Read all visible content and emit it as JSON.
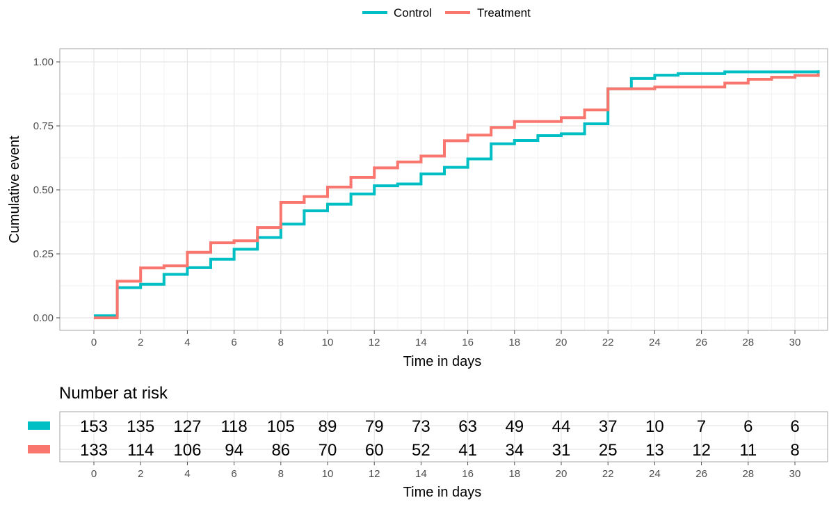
{
  "chart_data": {
    "type": "line",
    "step": true,
    "title": "",
    "xlabel": "Time in days",
    "ylabel": "Cumulative event",
    "xlim": [
      0,
      31
    ],
    "ylim": [
      0,
      1
    ],
    "x_ticks": [
      0,
      2,
      4,
      6,
      8,
      10,
      12,
      14,
      16,
      18,
      20,
      22,
      24,
      26,
      28,
      30
    ],
    "x_ticks_minor": [
      1,
      3,
      5,
      7,
      9,
      11,
      13,
      15,
      17,
      19,
      21,
      23,
      25,
      27,
      29,
      31
    ],
    "y_ticks": [
      "0.00",
      "0.25",
      "0.50",
      "0.75",
      "1.00"
    ],
    "y_ticks_minor": [
      0.125,
      0.375,
      0.625,
      0.875
    ],
    "grid": true,
    "legend_position": "top-center",
    "series": [
      {
        "name": "Control",
        "color": "#00BFC4",
        "x": [
          0,
          1,
          2,
          3,
          4,
          5,
          6,
          7,
          8,
          9,
          10,
          11,
          12,
          13,
          14,
          15,
          16,
          17,
          18,
          19,
          20,
          21,
          22,
          23,
          24,
          25,
          27,
          31
        ],
        "y": [
          0.008,
          0.118,
          0.131,
          0.17,
          0.196,
          0.229,
          0.268,
          0.314,
          0.366,
          0.418,
          0.444,
          0.484,
          0.516,
          0.523,
          0.562,
          0.588,
          0.621,
          0.68,
          0.693,
          0.712,
          0.719,
          0.758,
          0.895,
          0.935,
          0.948,
          0.954,
          0.961,
          0.967
        ]
      },
      {
        "name": "Treatment",
        "color": "#F8766D",
        "x": [
          0,
          1,
          2,
          3,
          4,
          5,
          6,
          7,
          8,
          9,
          10,
          11,
          12,
          13,
          14,
          15,
          16,
          17,
          18,
          20,
          21,
          22,
          24,
          27,
          28,
          29,
          30,
          31
        ],
        "y": [
          0.0,
          0.143,
          0.195,
          0.203,
          0.256,
          0.293,
          0.301,
          0.353,
          0.451,
          0.474,
          0.511,
          0.549,
          0.586,
          0.609,
          0.632,
          0.692,
          0.714,
          0.744,
          0.767,
          0.782,
          0.812,
          0.895,
          0.902,
          0.917,
          0.932,
          0.94,
          0.947,
          0.955
        ]
      }
    ]
  },
  "risk_table": {
    "title": "Number at risk",
    "xlabel": "Time in days",
    "times": [
      0,
      2,
      4,
      6,
      8,
      10,
      12,
      14,
      16,
      18,
      20,
      22,
      24,
      26,
      28,
      30
    ],
    "time_labels": [
      "0",
      "2",
      "4",
      "6",
      "8",
      "10",
      "12",
      "14",
      "16",
      "18",
      "20",
      "22",
      "24",
      "26",
      "28",
      "30"
    ],
    "rows": [
      {
        "series": "Control",
        "color": "#00BFC4",
        "values": [
          "153",
          "135",
          "127",
          "118",
          "105",
          "89",
          "79",
          "73",
          "63",
          "49",
          "44",
          "37",
          "10",
          "7",
          "6",
          "6"
        ]
      },
      {
        "series": "Treatment",
        "color": "#F8766D",
        "values": [
          "133",
          "114",
          "106",
          "94",
          "86",
          "70",
          "60",
          "52",
          "41",
          "34",
          "31",
          "25",
          "13",
          "12",
          "11",
          "8"
        ]
      }
    ]
  },
  "colors": {
    "panel_border": "#b3b3b3",
    "grid_major": "#e5e5e5",
    "grid_minor": "#f2f2f2",
    "axis_text": "#4d4d4d",
    "title_text": "#000000"
  }
}
